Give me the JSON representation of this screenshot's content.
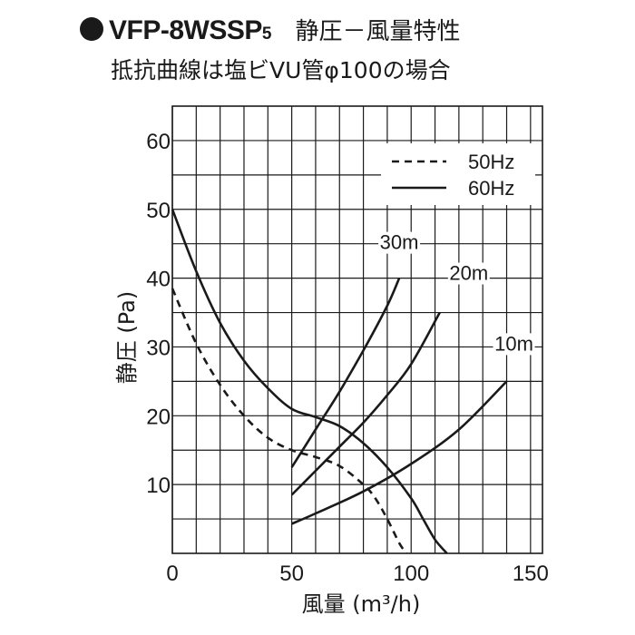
{
  "title": {
    "model": "VFP-8WSSP",
    "model_sub": "5",
    "text": "静圧－風量特性",
    "subtitle": "抵抗曲線は塩ビVU管φ100の場合"
  },
  "chart_data": {
    "type": "line",
    "xlabel": "風量 (m³/h)",
    "ylabel": "静圧 (Pa)",
    "xlim": [
      0,
      155
    ],
    "ylim": [
      0,
      65
    ],
    "x_ticks": [
      "0",
      "50",
      "100",
      "150"
    ],
    "y_ticks": [
      "10",
      "20",
      "30",
      "40",
      "50",
      "60"
    ],
    "grid": true,
    "legend_position": "top-right",
    "series": [
      {
        "name": "50Hz",
        "style": "dashed",
        "x": [
          0,
          10,
          20,
          30,
          40,
          50,
          60,
          70,
          80,
          85,
          90,
          95,
          98
        ],
        "y": [
          38.5,
          30.5,
          24.5,
          20.0,
          16.8,
          15.0,
          14.0,
          12.7,
          10.0,
          8.0,
          5.0,
          1.5,
          0
        ]
      },
      {
        "name": "60Hz",
        "style": "solid",
        "x": [
          0,
          10,
          20,
          30,
          40,
          50,
          60,
          70,
          80,
          90,
          100,
          105,
          110,
          115
        ],
        "y": [
          50,
          41,
          33.5,
          28.0,
          24.0,
          21.0,
          19.8,
          18.5,
          16.0,
          12.5,
          8.0,
          5.0,
          2.0,
          0
        ]
      }
    ],
    "resistance_curves": [
      {
        "label": "30m",
        "x": [
          50,
          60,
          70,
          80,
          90,
          95
        ],
        "y": [
          12.5,
          18.0,
          23.5,
          29.5,
          36.0,
          40.0
        ]
      },
      {
        "label": "20m",
        "x": [
          50,
          60,
          70,
          80,
          90,
          100,
          112
        ],
        "y": [
          8.5,
          12.0,
          15.5,
          19.0,
          23.0,
          27.5,
          35.0
        ]
      },
      {
        "label": "10m",
        "x": [
          50,
          60,
          80,
          100,
          120,
          140
        ],
        "y": [
          4.3,
          5.8,
          9.0,
          13.0,
          18.0,
          25.0
        ]
      }
    ]
  }
}
